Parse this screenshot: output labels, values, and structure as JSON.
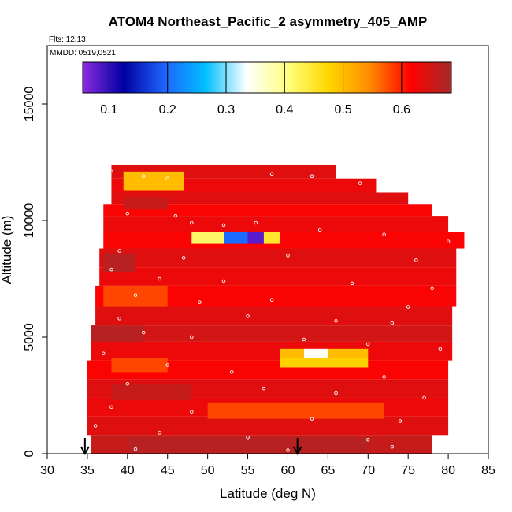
{
  "chart_data": {
    "type": "heatmap",
    "title": "ATOM4 Northeast_Pacific_2 asymmetry_405_AMP",
    "annotations": {
      "flights": "Flts: 12,13",
      "dates": "MMDD: 0519,0521"
    },
    "xlabel": "Latitude (deg N)",
    "ylabel": "Altitude (m)",
    "xlim": [
      30,
      85
    ],
    "ylim": [
      0,
      17500
    ],
    "x_ticks": [
      "30",
      "35",
      "40",
      "45",
      "50",
      "55",
      "60",
      "65",
      "70",
      "75",
      "80",
      "85"
    ],
    "y_ticks": [
      "0",
      "5000",
      "10000",
      "15000"
    ],
    "colorbar": {
      "range": [
        0.055,
        0.685
      ],
      "ticks": [
        "0.1",
        "0.2",
        "0.3",
        "0.4",
        "0.5",
        "0.6"
      ],
      "stops": [
        "#8a2be2",
        "#0000a0",
        "#1e64ff",
        "#00bfff",
        "#ffffff",
        "#ffff80",
        "#ffd700",
        "#ff8c00",
        "#ff0000",
        "#a52a2a"
      ]
    },
    "background_value": 0.635,
    "rows": [
      {
        "alt": [
          11800,
          12400
        ],
        "lat": [
          38,
          66
        ],
        "value": 0.64
      },
      {
        "alt": [
          11200,
          11800
        ],
        "lat": [
          38,
          71
        ],
        "value": 0.63
      },
      {
        "alt": [
          10700,
          11200
        ],
        "lat": [
          38,
          75
        ],
        "value": 0.64
      },
      {
        "alt": [
          10200,
          10700
        ],
        "lat": [
          37,
          78
        ],
        "value": 0.62
      },
      {
        "alt": [
          9500,
          10200
        ],
        "lat": [
          37,
          80
        ],
        "value": 0.63
      },
      {
        "alt": [
          8800,
          9500
        ],
        "lat": [
          37,
          82
        ],
        "value": 0.62
      },
      {
        "alt": [
          8000,
          8800
        ],
        "lat": [
          36.5,
          81
        ],
        "value": 0.64
      },
      {
        "alt": [
          7200,
          8000
        ],
        "lat": [
          36.5,
          81
        ],
        "value": 0.63
      },
      {
        "alt": [
          6300,
          7200
        ],
        "lat": [
          36,
          81
        ],
        "value": 0.62
      },
      {
        "alt": [
          5500,
          6300
        ],
        "lat": [
          36,
          80.5
        ],
        "value": 0.64
      },
      {
        "alt": [
          4800,
          5500
        ],
        "lat": [
          35.5,
          80.5
        ],
        "value": 0.65
      },
      {
        "alt": [
          4000,
          4800
        ],
        "lat": [
          35.5,
          80.5
        ],
        "value": 0.63
      },
      {
        "alt": [
          3200,
          4000
        ],
        "lat": [
          35,
          80
        ],
        "value": 0.62
      },
      {
        "alt": [
          2400,
          3200
        ],
        "lat": [
          35,
          80
        ],
        "value": 0.64
      },
      {
        "alt": [
          1600,
          2400
        ],
        "lat": [
          35,
          80
        ],
        "value": 0.63
      },
      {
        "alt": [
          800,
          1600
        ],
        "lat": [
          35,
          80
        ],
        "value": 0.64
      },
      {
        "alt": [
          0,
          800
        ],
        "lat": [
          35.5,
          78
        ],
        "value": 0.66
      }
    ],
    "patches": [
      {
        "alt": [
          11300,
          12100
        ],
        "lat": [
          39.5,
          47
        ],
        "value": 0.5
      },
      {
        "alt": [
          10500,
          11000
        ],
        "lat": [
          39.5,
          45
        ],
        "value": 0.66
      },
      {
        "alt": [
          9000,
          9500
        ],
        "lat": [
          48,
          52
        ],
        "value": 0.42
      },
      {
        "alt": [
          9000,
          9500
        ],
        "lat": [
          52,
          55
        ],
        "value": 0.2
      },
      {
        "alt": [
          9000,
          9500
        ],
        "lat": [
          55,
          57
        ],
        "value": 0.08
      },
      {
        "alt": [
          9000,
          9500
        ],
        "lat": [
          57,
          59
        ],
        "value": 0.45
      },
      {
        "alt": [
          7800,
          8600
        ],
        "lat": [
          37,
          41
        ],
        "value": 0.67
      },
      {
        "alt": [
          6300,
          7200
        ],
        "lat": [
          37,
          45
        ],
        "value": 0.58
      },
      {
        "alt": [
          4800,
          5500
        ],
        "lat": [
          35.5,
          42
        ],
        "value": 0.67
      },
      {
        "alt": [
          3500,
          4100
        ],
        "lat": [
          38,
          45
        ],
        "value": 0.58
      },
      {
        "alt": [
          4100,
          4500
        ],
        "lat": [
          59,
          62
        ],
        "value": 0.5
      },
      {
        "alt": [
          4100,
          4500
        ],
        "lat": [
          62,
          65
        ],
        "value": 0.34
      },
      {
        "alt": [
          4100,
          4500
        ],
        "lat": [
          65,
          70
        ],
        "value": 0.5
      },
      {
        "alt": [
          3700,
          4100
        ],
        "lat": [
          59,
          70
        ],
        "value": 0.48
      },
      {
        "alt": [
          2300,
          3000
        ],
        "lat": [
          38,
          48
        ],
        "value": 0.66
      },
      {
        "alt": [
          1500,
          2200
        ],
        "lat": [
          50,
          72
        ],
        "value": 0.58
      },
      {
        "alt": [
          0,
          700
        ],
        "lat": [
          40,
          70
        ],
        "value": 0.67
      }
    ],
    "sample_points": [
      [
        38,
        12100
      ],
      [
        42,
        11900
      ],
      [
        45,
        11800
      ],
      [
        58,
        12000
      ],
      [
        63,
        11900
      ],
      [
        67,
        12000
      ],
      [
        69,
        11600
      ],
      [
        40,
        10300
      ],
      [
        46,
        10200
      ],
      [
        48,
        9900
      ],
      [
        52,
        9800
      ],
      [
        56,
        9900
      ],
      [
        64,
        9600
      ],
      [
        72,
        9400
      ],
      [
        80,
        9100
      ],
      [
        39,
        8700
      ],
      [
        47,
        8400
      ],
      [
        60,
        8500
      ],
      [
        76,
        8300
      ],
      [
        38,
        7900
      ],
      [
        44,
        7500
      ],
      [
        52,
        7400
      ],
      [
        68,
        7300
      ],
      [
        78,
        7100
      ],
      [
        41,
        6800
      ],
      [
        49,
        6500
      ],
      [
        58,
        6600
      ],
      [
        75,
        6300
      ],
      [
        39,
        5800
      ],
      [
        55,
        5900
      ],
      [
        66,
        5700
      ],
      [
        73,
        5600
      ],
      [
        42,
        5200
      ],
      [
        48,
        5000
      ],
      [
        62,
        4900
      ],
      [
        70,
        4700
      ],
      [
        79,
        4500
      ],
      [
        37,
        4300
      ],
      [
        45,
        3800
      ],
      [
        53,
        3500
      ],
      [
        72,
        3300
      ],
      [
        40,
        3000
      ],
      [
        57,
        2800
      ],
      [
        66,
        2600
      ],
      [
        77,
        2400
      ],
      [
        38,
        2000
      ],
      [
        48,
        1800
      ],
      [
        63,
        1500
      ],
      [
        74,
        1400
      ],
      [
        36,
        1200
      ],
      [
        44,
        900
      ],
      [
        55,
        700
      ],
      [
        70,
        600
      ],
      [
        79,
        400
      ],
      [
        41,
        200
      ],
      [
        60,
        150
      ],
      [
        73,
        300
      ]
    ],
    "flight_markers": [
      34.7,
      61.2
    ]
  }
}
